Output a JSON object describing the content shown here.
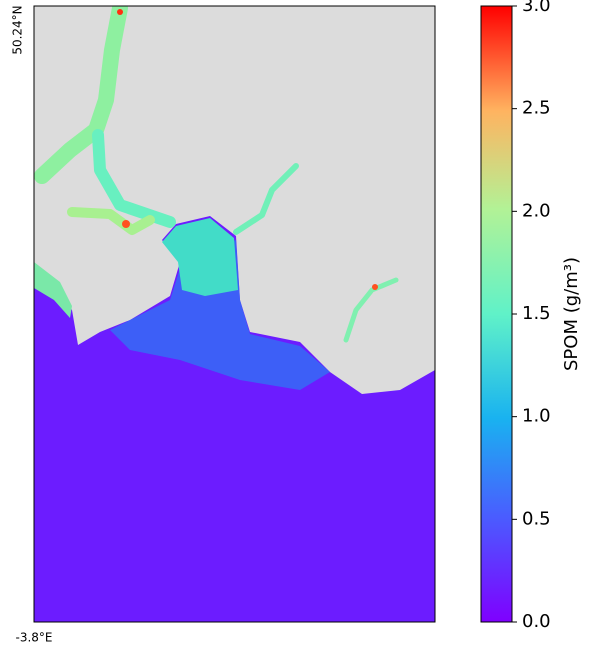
{
  "map": {
    "lat_label": "50.24°N",
    "lon_label": "-3.8°E"
  },
  "colorbar": {
    "label": "SPOM (g/m³)",
    "lim": [
      0,
      3
    ],
    "ticks": [
      {
        "value": 0,
        "label": "0.0"
      },
      {
        "value": 0.5,
        "label": "0.5"
      },
      {
        "value": 1,
        "label": "1.0"
      },
      {
        "value": 1.5,
        "label": "1.5"
      },
      {
        "value": 2,
        "label": "2.0"
      },
      {
        "value": 2.5,
        "label": "2.5"
      },
      {
        "value": 3,
        "label": "3.0"
      }
    ]
  }
}
